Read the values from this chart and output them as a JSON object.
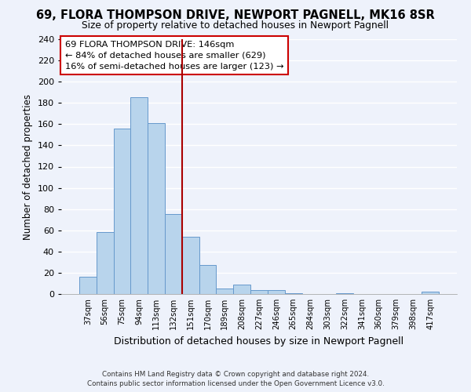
{
  "title": "69, FLORA THOMPSON DRIVE, NEWPORT PAGNELL, MK16 8SR",
  "subtitle": "Size of property relative to detached houses in Newport Pagnell",
  "xlabel": "Distribution of detached houses by size in Newport Pagnell",
  "ylabel": "Number of detached properties",
  "bar_color": "#b8d4ec",
  "bar_edge_color": "#6699cc",
  "bin_labels": [
    "37sqm",
    "56sqm",
    "75sqm",
    "94sqm",
    "113sqm",
    "132sqm",
    "151sqm",
    "170sqm",
    "189sqm",
    "208sqm",
    "227sqm",
    "246sqm",
    "265sqm",
    "284sqm",
    "303sqm",
    "322sqm",
    "341sqm",
    "360sqm",
    "379sqm",
    "398sqm",
    "417sqm"
  ],
  "bar_heights": [
    16,
    58,
    156,
    185,
    161,
    75,
    54,
    27,
    5,
    9,
    4,
    4,
    1,
    0,
    0,
    1,
    0,
    0,
    0,
    0,
    2
  ],
  "ylim": [
    0,
    240
  ],
  "yticks": [
    0,
    20,
    40,
    60,
    80,
    100,
    120,
    140,
    160,
    180,
    200,
    220,
    240
  ],
  "vline_x": 5.5,
  "vline_color": "#aa0000",
  "annotation_line1": "69 FLORA THOMPSON DRIVE: 146sqm",
  "annotation_line2": "← 84% of detached houses are smaller (629)",
  "annotation_line3": "16% of semi-detached houses are larger (123) →",
  "footer_line1": "Contains HM Land Registry data © Crown copyright and database right 2024.",
  "footer_line2": "Contains public sector information licensed under the Open Government Licence v3.0.",
  "background_color": "#eef2fb",
  "grid_color": "#ffffff"
}
